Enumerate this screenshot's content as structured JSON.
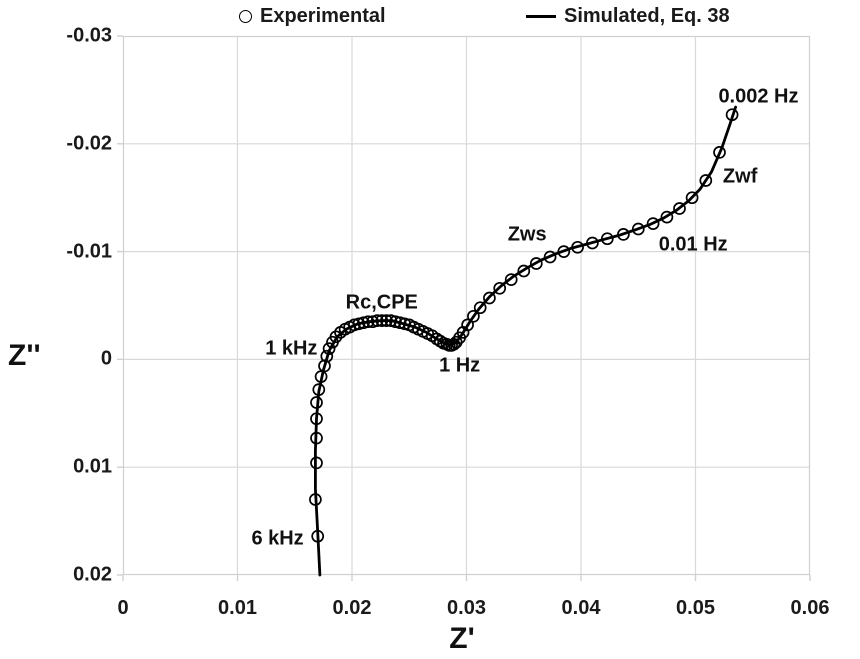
{
  "colors": {
    "curve": "#000000",
    "marker_stroke": "#000000",
    "grid": "#d9d9d9",
    "axis_border": "#d0d0d0",
    "text": "#1a1a1a"
  },
  "legend": {
    "experimental_label": "Experimental",
    "simulated_label": "Simulated, Eq. 38"
  },
  "chart_data": {
    "type": "scatter",
    "subtype": "nyquist-impedance-plot",
    "title": "",
    "xlabel": "Z'",
    "ylabel": "Z''",
    "xlim": [
      0,
      0.06
    ],
    "ylim_top": -0.03,
    "ylim_bottom": 0.02,
    "x_ticks": [
      0,
      0.01,
      0.02,
      0.03,
      0.04,
      0.05,
      0.06
    ],
    "x_tick_labels": [
      "0",
      "0.01",
      "0.02",
      "0.03",
      "0.04",
      "0.05",
      "0.06"
    ],
    "y_ticks": [
      -0.03,
      -0.02,
      -0.01,
      0,
      0.01,
      0.02
    ],
    "y_tick_labels": [
      "-0.03",
      "-0.02",
      "-0.01",
      "0",
      "0.01",
      "0.02"
    ],
    "grid": true,
    "legend_position": "top",
    "series": [
      {
        "name": "Experimental",
        "plot_as": "scatter",
        "marker": "open-circle",
        "points": [
          [
            0.017,
            0.0164
          ],
          [
            0.0168,
            0.013
          ],
          [
            0.0169,
            0.0096
          ],
          [
            0.0169,
            0.0073
          ],
          [
            0.0169,
            0.0055
          ],
          [
            0.0169,
            0.004
          ],
          [
            0.0171,
            0.0028
          ],
          [
            0.0173,
            0.0016
          ],
          [
            0.0176,
            0.0006
          ],
          [
            0.0178,
            -0.0003
          ],
          [
            0.018,
            -0.001
          ],
          [
            0.0183,
            -0.0016
          ],
          [
            0.0186,
            -0.0021
          ],
          [
            0.019,
            -0.0025
          ],
          [
            0.0194,
            -0.0028
          ],
          [
            0.0198,
            -0.003
          ],
          [
            0.0202,
            -0.0032
          ],
          [
            0.0206,
            -0.0033
          ],
          [
            0.021,
            -0.0034
          ],
          [
            0.0214,
            -0.0035
          ],
          [
            0.0218,
            -0.0035
          ],
          [
            0.0222,
            -0.0036
          ],
          [
            0.0226,
            -0.0036
          ],
          [
            0.023,
            -0.0036
          ],
          [
            0.0234,
            -0.0036
          ],
          [
            0.0238,
            -0.0035
          ],
          [
            0.0242,
            -0.0034
          ],
          [
            0.0246,
            -0.0033
          ],
          [
            0.025,
            -0.0032
          ],
          [
            0.0254,
            -0.003
          ],
          [
            0.0258,
            -0.0028
          ],
          [
            0.0262,
            -0.0026
          ],
          [
            0.0266,
            -0.0024
          ],
          [
            0.027,
            -0.0022
          ],
          [
            0.0274,
            -0.0019
          ],
          [
            0.0277,
            -0.0017
          ],
          [
            0.028,
            -0.0015
          ],
          [
            0.0283,
            -0.0014
          ],
          [
            0.0285,
            -0.0013
          ],
          [
            0.0287,
            -0.0013
          ],
          [
            0.0289,
            -0.0014
          ],
          [
            0.0291,
            -0.0016
          ],
          [
            0.0294,
            -0.002
          ],
          [
            0.0297,
            -0.0025
          ],
          [
            0.0301,
            -0.0032
          ],
          [
            0.0306,
            -0.004
          ],
          [
            0.0312,
            -0.0048
          ],
          [
            0.032,
            -0.0057
          ],
          [
            0.0329,
            -0.0066
          ],
          [
            0.0339,
            -0.0074
          ],
          [
            0.035,
            -0.0082
          ],
          [
            0.0361,
            -0.0089
          ],
          [
            0.0373,
            -0.0095
          ],
          [
            0.0385,
            -0.01
          ],
          [
            0.0397,
            -0.0104
          ],
          [
            0.041,
            -0.0108
          ],
          [
            0.0423,
            -0.0112
          ],
          [
            0.0437,
            -0.0116
          ],
          [
            0.045,
            -0.0121
          ],
          [
            0.0463,
            -0.0126
          ],
          [
            0.0475,
            -0.0132
          ],
          [
            0.0486,
            -0.014
          ],
          [
            0.0497,
            -0.015
          ],
          [
            0.0509,
            -0.0166
          ],
          [
            0.0521,
            -0.0192
          ],
          [
            0.0532,
            -0.0227
          ]
        ]
      },
      {
        "name": "Simulated, Eq. 38",
        "plot_as": "line",
        "points": [
          [
            0.0172,
            0.02
          ],
          [
            0.017,
            0.016
          ],
          [
            0.0168,
            0.012
          ],
          [
            0.0168,
            0.0085
          ],
          [
            0.0169,
            0.0055
          ],
          [
            0.0171,
            0.003
          ],
          [
            0.0175,
            0.001
          ],
          [
            0.018,
            -0.0008
          ],
          [
            0.0187,
            -0.0021
          ],
          [
            0.0195,
            -0.0028
          ],
          [
            0.0205,
            -0.0033
          ],
          [
            0.0215,
            -0.0035
          ],
          [
            0.0225,
            -0.0036
          ],
          [
            0.0235,
            -0.0036
          ],
          [
            0.0245,
            -0.0033
          ],
          [
            0.0255,
            -0.003
          ],
          [
            0.0265,
            -0.0025
          ],
          [
            0.0274,
            -0.0019
          ],
          [
            0.0281,
            -0.0015
          ],
          [
            0.0286,
            -0.0013
          ],
          [
            0.0291,
            -0.0016
          ],
          [
            0.0296,
            -0.0023
          ],
          [
            0.0303,
            -0.0035
          ],
          [
            0.0311,
            -0.0047
          ],
          [
            0.032,
            -0.0058
          ],
          [
            0.033,
            -0.0068
          ],
          [
            0.0341,
            -0.0077
          ],
          [
            0.0353,
            -0.0085
          ],
          [
            0.0365,
            -0.0092
          ],
          [
            0.0378,
            -0.0098
          ],
          [
            0.0391,
            -0.0103
          ],
          [
            0.0405,
            -0.0107
          ],
          [
            0.0419,
            -0.0111
          ],
          [
            0.0433,
            -0.0115
          ],
          [
            0.0447,
            -0.012
          ],
          [
            0.046,
            -0.0125
          ],
          [
            0.0472,
            -0.0131
          ],
          [
            0.0483,
            -0.0138
          ],
          [
            0.0494,
            -0.0147
          ],
          [
            0.0504,
            -0.0158
          ],
          [
            0.0514,
            -0.0174
          ],
          [
            0.0523,
            -0.0196
          ],
          [
            0.053,
            -0.0218
          ],
          [
            0.0535,
            -0.0234
          ]
        ]
      }
    ],
    "annotations": [
      {
        "text": "0.002 Hz",
        "x": 0.0555,
        "y": -0.0243
      },
      {
        "text": "Zwf",
        "x": 0.0539,
        "y": -0.0169
      },
      {
        "text": "Zws",
        "x": 0.0353,
        "y": -0.0115
      },
      {
        "text": "0.01 Hz",
        "x": 0.0498,
        "y": -0.0106
      },
      {
        "text": "Rc,CPE",
        "x": 0.0226,
        "y": -0.0052
      },
      {
        "text": "1 Hz",
        "x": 0.0294,
        "y": 0.0006
      },
      {
        "text": "1 kHz",
        "x": 0.0147,
        "y": -0.001
      },
      {
        "text": "6 kHz",
        "x": 0.0135,
        "y": 0.0167
      }
    ]
  }
}
